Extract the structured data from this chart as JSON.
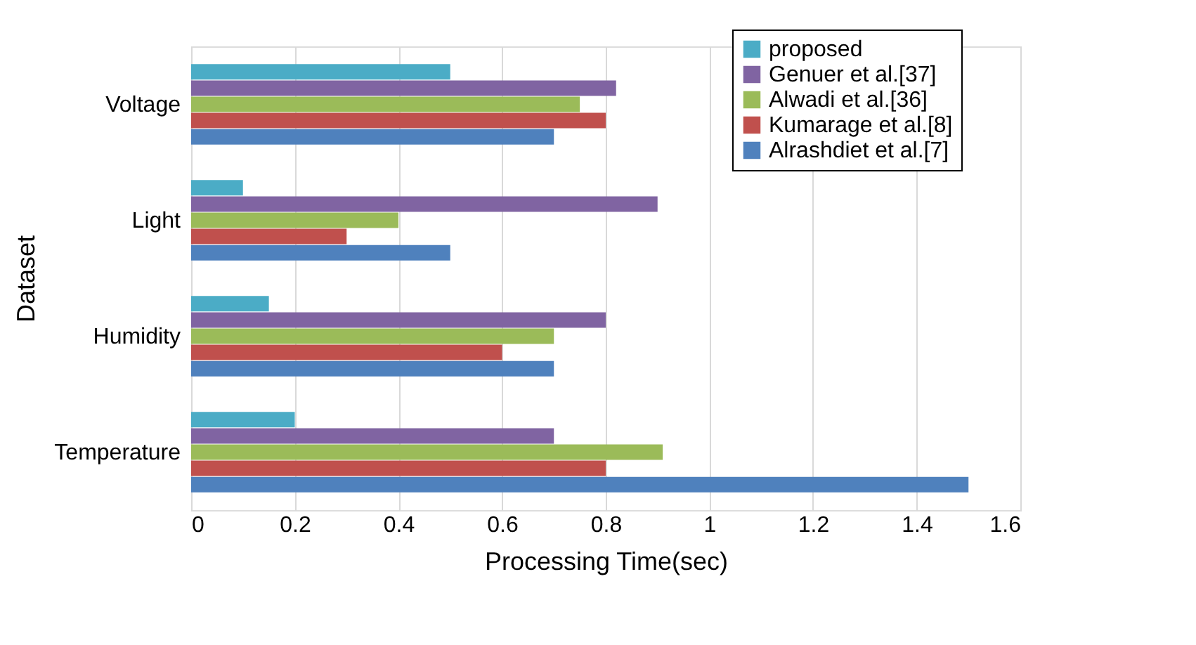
{
  "chart_data": {
    "type": "bar",
    "orientation": "horizontal",
    "xlabel": "Processing Time(sec)",
    "ylabel": "Dataset",
    "categories": [
      "Voltage",
      "Light",
      "Humidity",
      "Temperature"
    ],
    "series": [
      {
        "name": "proposed",
        "color": "#4bacc6",
        "values": [
          0.5,
          0.1,
          0.15,
          0.2
        ]
      },
      {
        "name": "Genuer et al.[37]",
        "color": "#8064a2",
        "values": [
          0.82,
          0.9,
          0.8,
          0.7
        ]
      },
      {
        "name": "Alwadi et al.[36]",
        "color": "#9bbb59",
        "values": [
          0.75,
          0.4,
          0.7,
          0.91
        ]
      },
      {
        "name": "Kumarage et al.[8]",
        "color": "#c0504d",
        "values": [
          0.8,
          0.3,
          0.6,
          0.8
        ]
      },
      {
        "name": "Alrashdiet et al.[7]",
        "color": "#4f81bd",
        "values": [
          0.7,
          0.5,
          0.7,
          1.5
        ]
      }
    ],
    "xlim": [
      0,
      1.6
    ],
    "xticks": [
      0,
      0.2,
      0.4,
      0.6,
      0.8,
      1,
      1.2,
      1.4,
      1.6
    ],
    "grid": "x",
    "legend": "top right"
  }
}
